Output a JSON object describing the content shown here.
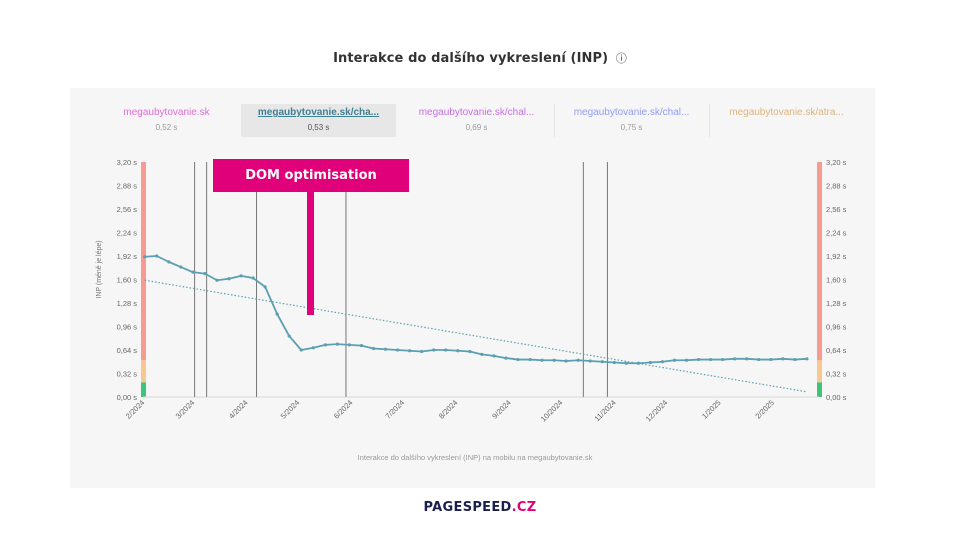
{
  "page": {
    "title": "Interakce do dalšího vykreslení (INP)",
    "info_icon": "ⓘ"
  },
  "tabs": [
    {
      "label": "megaubytovanie.sk",
      "value": "0,52 s",
      "color": "#e36bd8",
      "active": false
    },
    {
      "label": "megaubytovanie.sk/cha...",
      "value": "0,53 s",
      "color": "#3f7f93",
      "active": true
    },
    {
      "label": "megaubytovanie.sk/chal...",
      "value": "0,69 s",
      "color": "#c56fe0",
      "active": false
    },
    {
      "label": "megaubytovanie.sk/chal...",
      "value": "0,75 s",
      "color": "#8f9cf0",
      "active": false
    },
    {
      "label": "megaubytovanie.sk/atra...",
      "value": "",
      "color": "#dcb47e",
      "active": false
    }
  ],
  "annotation": {
    "text": "DOM optimisation",
    "color": "#e0007a"
  },
  "logo": {
    "part1": "PAGESPEED",
    "part2": ".CZ"
  },
  "colors": {
    "series": "#5b9fb0",
    "trend": "#5b9fb0",
    "good": "#3cc47c",
    "needs_improvement": "#f7c98e",
    "poor": "#f79a92"
  },
  "chart_data": {
    "type": "line",
    "title": "",
    "ylabel": "INP (méně je lépe)",
    "xlabel": "Interakce do dalšího vykreslení (INP) na mobilu na megaubytovanie.sk",
    "ylim": [
      0,
      3.2
    ],
    "yticks": [
      0,
      0.32,
      0.64,
      0.96,
      1.28,
      1.6,
      1.92,
      2.24,
      2.56,
      2.88,
      3.2
    ],
    "ytick_labels": [
      "0,00 s",
      "0,32 s",
      "0,64 s",
      "0,96 s",
      "1,28 s",
      "1,60 s",
      "1,92 s",
      "2,24 s",
      "2,56 s",
      "2,88 s",
      "3,20 s"
    ],
    "xlim": [
      "2024-02-01",
      "2025-02-28"
    ],
    "xticks": [
      {
        "date": "2024-02-01",
        "label": "2/2024"
      },
      {
        "date": "2024-03-01",
        "label": "3/2024"
      },
      {
        "date": "2024-04-01",
        "label": "4/2024"
      },
      {
        "date": "2024-05-01",
        "label": "5/2024"
      },
      {
        "date": "2024-06-01",
        "label": "6/2024"
      },
      {
        "date": "2024-07-01",
        "label": "7/2024"
      },
      {
        "date": "2024-08-01",
        "label": "8/2024"
      },
      {
        "date": "2024-09-01",
        "label": "9/2024"
      },
      {
        "date": "2024-10-01",
        "label": "10/2024"
      },
      {
        "date": "2024-11-01",
        "label": "11/2024"
      },
      {
        "date": "2024-12-01",
        "label": "12/2024"
      },
      {
        "date": "2025-01-01",
        "label": "1/2025"
      },
      {
        "date": "2025-02-01",
        "label": "2/2025"
      }
    ],
    "markers": [
      "2024-03-02",
      "2024-03-09",
      "2024-04-07",
      "2024-05-29",
      "2024-10-14",
      "2024-10-28"
    ],
    "zones": [
      {
        "from": 0,
        "to": 0.2,
        "color": "#3cc47c"
      },
      {
        "from": 0.2,
        "to": 0.5,
        "color": "#f7c98e"
      },
      {
        "from": 0.5,
        "to": 3.2,
        "color": "#f79a92"
      }
    ],
    "series": [
      {
        "x": [
          "2024-02-02",
          "2024-02-09",
          "2024-02-16",
          "2024-02-23",
          "2024-03-01",
          "2024-03-08",
          "2024-03-15",
          "2024-03-22",
          "2024-03-29",
          "2024-04-05",
          "2024-04-12",
          "2024-04-19",
          "2024-04-26",
          "2024-05-03",
          "2024-05-10",
          "2024-05-17",
          "2024-05-24",
          "2024-05-31",
          "2024-06-07",
          "2024-06-14",
          "2024-06-21",
          "2024-06-28",
          "2024-07-05",
          "2024-07-12",
          "2024-07-19",
          "2024-07-26",
          "2024-08-02",
          "2024-08-09",
          "2024-08-16",
          "2024-08-23",
          "2024-08-30",
          "2024-09-06",
          "2024-09-13",
          "2024-09-20",
          "2024-09-27",
          "2024-10-04",
          "2024-10-11",
          "2024-10-18",
          "2024-10-25",
          "2024-11-01",
          "2024-11-08",
          "2024-11-15",
          "2024-11-22",
          "2024-11-29",
          "2024-12-06",
          "2024-12-13",
          "2024-12-20",
          "2024-12-27",
          "2025-01-03",
          "2025-01-10",
          "2025-01-17",
          "2025-01-24",
          "2025-01-31",
          "2025-02-07",
          "2025-02-14",
          "2025-02-21"
        ],
        "y": [
          1.91,
          1.92,
          1.84,
          1.77,
          1.7,
          1.68,
          1.59,
          1.61,
          1.65,
          1.62,
          1.5,
          1.13,
          0.83,
          0.64,
          0.67,
          0.71,
          0.72,
          0.71,
          0.7,
          0.66,
          0.65,
          0.64,
          0.63,
          0.62,
          0.64,
          0.64,
          0.63,
          0.62,
          0.58,
          0.56,
          0.53,
          0.51,
          0.51,
          0.5,
          0.5,
          0.49,
          0.5,
          0.49,
          0.48,
          0.47,
          0.46,
          0.46,
          0.47,
          0.48,
          0.5,
          0.5,
          0.51,
          0.51,
          0.51,
          0.52,
          0.52,
          0.51,
          0.51,
          0.52,
          0.51,
          0.52
        ]
      }
    ],
    "trend": {
      "x": [
        "2024-02-02",
        "2025-02-21"
      ],
      "y": [
        1.59,
        0.07
      ]
    }
  }
}
